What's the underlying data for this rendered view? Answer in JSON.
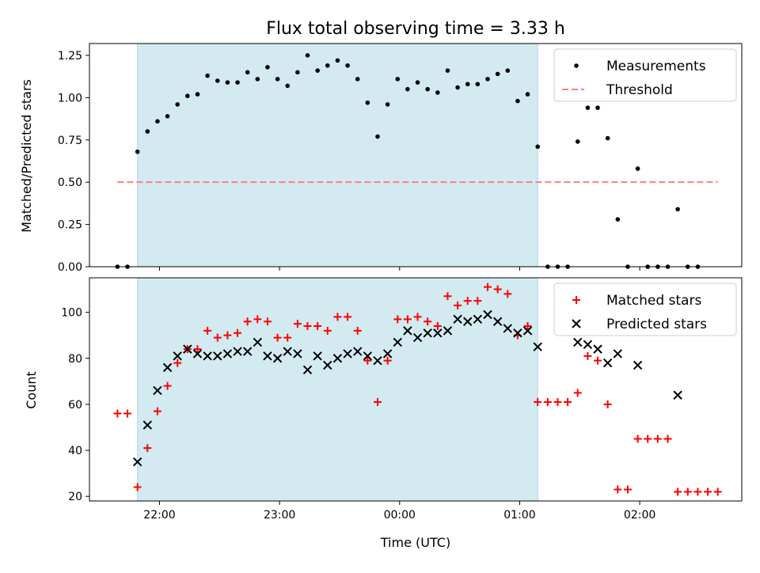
{
  "figure": {
    "title": "Flux total observing time = 3.33 h",
    "xlabel": "Time (UTC)"
  },
  "chart_data": [
    {
      "type": "scatter",
      "ylabel": "Matched/Predicted stars",
      "ylim": [
        0,
        1.32
      ],
      "yticks": [
        "0.00",
        "0.25",
        "0.50",
        "0.75",
        "1.00",
        "1.25"
      ],
      "xlim": [
        "21:25",
        "02:51"
      ],
      "shaded_span": [
        "21:49",
        "01:09"
      ],
      "legend": {
        "position": "top-right",
        "entries": [
          "Measurements",
          "Threshold"
        ]
      },
      "series": [
        {
          "name": "Measurements",
          "color": "#000000",
          "marker": "dot",
          "x": [
            "21:39",
            "21:44",
            "21:49",
            "21:54",
            "21:59",
            "22:04",
            "22:09",
            "22:14",
            "22:19",
            "22:24",
            "22:29",
            "22:34",
            "22:39",
            "22:44",
            "22:49",
            "22:54",
            "22:59",
            "23:04",
            "23:09",
            "23:14",
            "23:19",
            "23:24",
            "23:29",
            "23:34",
            "23:39",
            "23:44",
            "23:49",
            "23:54",
            "23:59",
            "00:04",
            "00:09",
            "00:14",
            "00:19",
            "00:24",
            "00:29",
            "00:34",
            "00:39",
            "00:44",
            "00:49",
            "00:54",
            "00:59",
            "01:04",
            "01:09",
            "01:14",
            "01:19",
            "01:24",
            "01:29",
            "01:34",
            "01:39",
            "01:44",
            "01:49",
            "01:54",
            "01:59",
            "02:04",
            "02:09",
            "02:14",
            "02:19",
            "02:24",
            "02:29"
          ],
          "values": [
            0.0,
            0.0,
            0.68,
            0.8,
            0.86,
            0.89,
            0.96,
            1.01,
            1.02,
            1.13,
            1.1,
            1.09,
            1.09,
            1.15,
            1.11,
            1.18,
            1.11,
            1.07,
            1.15,
            1.25,
            1.16,
            1.19,
            1.22,
            1.19,
            1.11,
            0.97,
            0.77,
            0.96,
            1.11,
            1.05,
            1.09,
            1.05,
            1.03,
            1.16,
            1.06,
            1.08,
            1.08,
            1.11,
            1.14,
            1.16,
            0.98,
            1.02,
            0.71,
            0.0,
            0.0,
            0.0,
            0.74,
            0.94,
            0.94,
            0.76,
            0.28,
            0.0,
            0.58,
            0.0,
            0.0,
            0.0,
            0.34,
            0.0,
            0.0
          ]
        },
        {
          "name": "Threshold",
          "color": "#ff7f7f",
          "style": "dashed",
          "x": [
            "21:39",
            "02:39"
          ],
          "values": [
            0.5,
            0.5
          ]
        }
      ]
    },
    {
      "type": "scatter",
      "ylabel": "Count",
      "ylim": [
        18,
        115
      ],
      "yticks": [
        "20",
        "40",
        "60",
        "80",
        "100"
      ],
      "xlim": [
        "21:25",
        "02:51"
      ],
      "xticks": [
        "22:00",
        "23:00",
        "00:00",
        "01:00",
        "02:00"
      ],
      "shaded_span": [
        "21:49",
        "01:09"
      ],
      "legend": {
        "position": "top-right",
        "entries": [
          "Matched stars",
          "Predicted stars"
        ]
      },
      "series": [
        {
          "name": "Matched stars",
          "color": "#ff0000",
          "marker": "plus",
          "x": [
            "21:39",
            "21:44",
            "21:49",
            "21:54",
            "21:59",
            "22:04",
            "22:09",
            "22:14",
            "22:19",
            "22:24",
            "22:29",
            "22:34",
            "22:39",
            "22:44",
            "22:49",
            "22:54",
            "22:59",
            "23:04",
            "23:09",
            "23:14",
            "23:19",
            "23:24",
            "23:29",
            "23:34",
            "23:39",
            "23:44",
            "23:49",
            "23:54",
            "23:59",
            "00:04",
            "00:09",
            "00:14",
            "00:19",
            "00:24",
            "00:29",
            "00:34",
            "00:39",
            "00:44",
            "00:49",
            "00:54",
            "00:59",
            "01:04",
            "01:09",
            "01:14",
            "01:19",
            "01:24",
            "01:29",
            "01:34",
            "01:39",
            "01:44",
            "01:49",
            "01:54",
            "01:59",
            "02:04",
            "02:09",
            "02:14",
            "02:19",
            "02:24",
            "02:29",
            "02:34",
            "02:39"
          ],
          "values": [
            56,
            56,
            24,
            41,
            57,
            68,
            78,
            84,
            84,
            92,
            89,
            90,
            91,
            96,
            97,
            96,
            89,
            89,
            95,
            94,
            94,
            92,
            98,
            98,
            92,
            79,
            61,
            79,
            97,
            97,
            98,
            96,
            94,
            107,
            103,
            105,
            105,
            111,
            110,
            108,
            90,
            94,
            61,
            61,
            61,
            61,
            65,
            81,
            79,
            60,
            23,
            23,
            45,
            45,
            45,
            45,
            22,
            22,
            22,
            22,
            22
          ]
        },
        {
          "name": "Predicted stars",
          "color": "#000000",
          "marker": "x",
          "x": [
            "21:49",
            "21:54",
            "21:59",
            "22:04",
            "22:09",
            "22:14",
            "22:19",
            "22:24",
            "22:29",
            "22:34",
            "22:39",
            "22:44",
            "22:49",
            "22:54",
            "22:59",
            "23:04",
            "23:09",
            "23:14",
            "23:19",
            "23:24",
            "23:29",
            "23:34",
            "23:39",
            "23:44",
            "23:49",
            "23:54",
            "23:59",
            "00:04",
            "00:09",
            "00:14",
            "00:19",
            "00:24",
            "00:29",
            "00:34",
            "00:39",
            "00:44",
            "00:49",
            "00:54",
            "00:59",
            "01:04",
            "01:09",
            "01:29",
            "01:34",
            "01:39",
            "01:44",
            "01:49",
            "01:59",
            "02:19"
          ],
          "values": [
            35,
            51,
            66,
            76,
            81,
            84,
            82,
            81,
            81,
            82,
            83,
            83,
            87,
            81,
            80,
            83,
            82,
            75,
            81,
            77,
            80,
            82,
            83,
            81,
            79,
            82,
            87,
            92,
            89,
            91,
            91,
            92,
            97,
            96,
            97,
            99,
            96,
            93,
            91,
            92,
            85,
            87,
            86,
            84,
            78,
            82,
            77,
            64
          ]
        }
      ]
    }
  ]
}
